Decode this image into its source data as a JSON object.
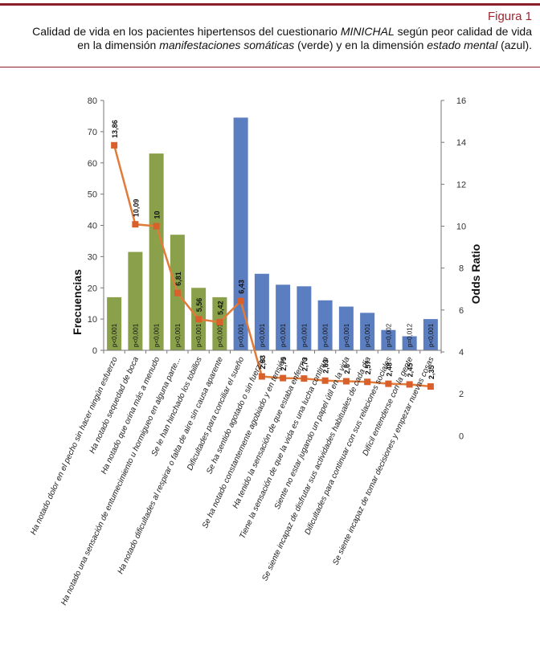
{
  "figure": {
    "label": "Figura 1",
    "caption_line1_pre": "Calidad de vida en los pacientes hipertensos del cuestionario ",
    "caption_line1_em": "MINICHAL",
    "caption_line1_post": " según peor calidad de vida",
    "caption_line2_pre": "en la dimensión ",
    "caption_line2_em1": "manifestaciones somáticas",
    "caption_line2_mid": " (verde) y en la dimensión ",
    "caption_line2_em2": "estado mental",
    "caption_line2_post": " (azul)."
  },
  "chart_data": {
    "type": "bar",
    "title": "",
    "ylabel": "Frecuencias",
    "y2label": "Odds Ratio",
    "ylim": [
      0,
      80
    ],
    "yticks": [
      0,
      10,
      20,
      30,
      40,
      50,
      60,
      70,
      80
    ],
    "y2lim": [
      0,
      16
    ],
    "y2ticks_upper": [
      4,
      6,
      8,
      10,
      12,
      14,
      16
    ],
    "y2ticks_lower": [
      0,
      2
    ],
    "categories": [
      "Ha notado dolor en el pecho sin hacer ningún esfuerzo",
      "Ha notado sequedad de boca",
      "Ha notado que orina más a menudo",
      "Ha notado una sensación de entumecimiento u hormigueo en alguna parte...",
      "Se le han hinchado los tobillos",
      "Ha notado dificultades al respirar o falta de aire sin causa aparente",
      "Dificultades para conciliar el sueño",
      "Se ha sentido agotado o sin fuerzas",
      "Se ha notado constantemente agobiado y en tensión",
      "Ha tenido la sensación de que estaba enfermo",
      "Tiene la sensación de que la vida es una lucha continua",
      "Siente no estar jugando un papel útil en la vida",
      "Se siente incapaz de disfrutar sus actividades habituales de cada día",
      "Dificultades  para continuar con sus relaciones sociales",
      "Difícil entenderse con la gente",
      "Se siente incapaz de tomar decisiones y empezar nuevas cosas"
    ],
    "series": [
      {
        "name": "Frecuencias",
        "kind": "bar",
        "values": [
          17,
          31.5,
          63,
          37,
          20,
          17,
          74.5,
          24.5,
          21,
          20.5,
          16,
          14,
          12,
          6.5,
          4.5,
          10
        ],
        "colors": [
          "#8aa04a",
          "#8aa04a",
          "#8aa04a",
          "#8aa04a",
          "#8aa04a",
          "#8aa04a",
          "#5b7ec0",
          "#5b7ec0",
          "#5b7ec0",
          "#5b7ec0",
          "#5b7ec0",
          "#5b7ec0",
          "#5b7ec0",
          "#5b7ec0",
          "#5b7ec0",
          "#5b7ec0"
        ],
        "bar_labels": [
          "p<0,001",
          "p<0,001",
          "p<0,001",
          "p<0,001",
          "p<0,001",
          "p<0,001",
          "p<0,001",
          "p<0,001",
          "p<0,001",
          "p<0,001",
          "p<0,001",
          "p<0,001",
          "p<0,001",
          "p=0,002",
          "p=0,012",
          "p<0,001"
        ]
      },
      {
        "name": "Odds Ratio",
        "kind": "line",
        "color": "#e07b39",
        "values": [
          13.86,
          10.09,
          10,
          6.81,
          5.56,
          5.42,
          6.43,
          2.83,
          2.75,
          2.73,
          2.63,
          2.6,
          2.57,
          2.48,
          2.45,
          2.35
        ],
        "labels": [
          "13,86",
          "10,09",
          "10",
          "6,81",
          "5,56",
          "5,42",
          "6,43",
          "2,83",
          "2,75",
          "2,73",
          "2,63",
          "2,6",
          "2,57",
          "2,48",
          "2,45",
          "2,35"
        ]
      }
    ]
  }
}
